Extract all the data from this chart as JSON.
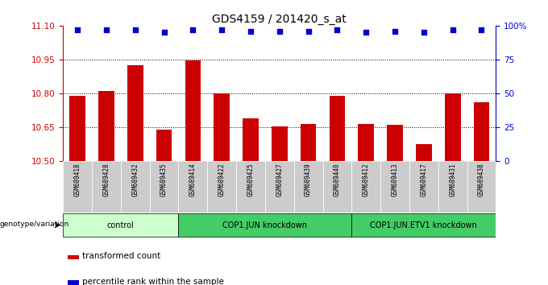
{
  "title": "GDS4159 / 201420_s_at",
  "samples": [
    "GSM689418",
    "GSM689428",
    "GSM689432",
    "GSM689435",
    "GSM689414",
    "GSM689422",
    "GSM689425",
    "GSM689427",
    "GSM689439",
    "GSM689440",
    "GSM689412",
    "GSM689413",
    "GSM689417",
    "GSM689431",
    "GSM689438"
  ],
  "bar_values": [
    10.79,
    10.81,
    10.925,
    10.64,
    10.945,
    10.8,
    10.69,
    10.655,
    10.665,
    10.79,
    10.665,
    10.66,
    10.575,
    10.8,
    10.76
  ],
  "percentile_values": [
    97,
    97,
    97,
    95,
    97,
    97,
    96,
    96,
    96,
    97,
    95,
    96,
    95,
    97,
    97
  ],
  "bar_color": "#cc0000",
  "dot_color": "#0000cc",
  "ylim_left": [
    10.5,
    11.1
  ],
  "ylim_right": [
    0,
    100
  ],
  "yticks_left": [
    10.5,
    10.65,
    10.8,
    10.95,
    11.1
  ],
  "yticks_right": [
    0,
    25,
    50,
    75,
    100
  ],
  "ytick_right_labels": [
    "0",
    "25",
    "50",
    "75",
    "100%"
  ],
  "groups": [
    {
      "label": "control",
      "start": 0,
      "end": 3,
      "color": "#ccffcc"
    },
    {
      "label": "COP1.JUN knockdown",
      "start": 4,
      "end": 9,
      "color": "#44cc66"
    },
    {
      "label": "COP1.JUN.ETV1 knockdown",
      "start": 10,
      "end": 14,
      "color": "#44cc66"
    }
  ],
  "genotype_label": "genotype/variation",
  "legend_bar_label": "transformed count",
  "legend_dot_label": "percentile rank within the sample",
  "background_color": "#ffffff",
  "title_fontsize": 10,
  "tick_fontsize": 7.5,
  "xlabel_fontsize": 6.5
}
